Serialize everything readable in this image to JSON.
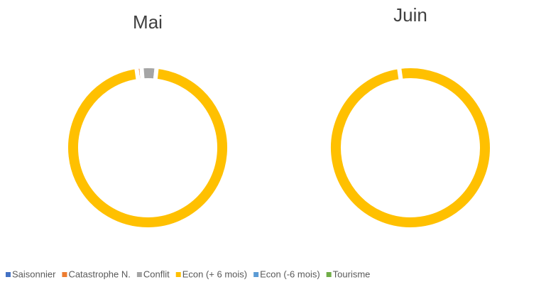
{
  "chart_data": [
    {
      "type": "pie",
      "title": "Mai",
      "categories": [
        "Saisonnier",
        "Catastrophe N.",
        "Conflit",
        "Econ (+ 6 mois)",
        "Econ (-6 mois)",
        "Tourisme"
      ],
      "values": [
        0,
        1,
        3,
        96,
        0,
        0
      ],
      "colors": [
        "#4472c4",
        "#ed7d31",
        "#a5a5a5",
        "#ffc000",
        "#5b9bd5",
        "#70ad47"
      ],
      "legend": "bottom"
    },
    {
      "type": "pie",
      "title": "Juin",
      "categories": [
        "Saisonnier",
        "Catastrophe N.",
        "Conflit",
        "Econ (+ 6 mois)",
        "Econ (-6 mois)",
        "Tourisme"
      ],
      "values": [
        0,
        0,
        0,
        100,
        0,
        0
      ],
      "colors": [
        "#4472c4",
        "#ed7d31",
        "#a5a5a5",
        "#ffc000",
        "#5b9bd5",
        "#70ad47"
      ],
      "legend": "bottom"
    }
  ]
}
